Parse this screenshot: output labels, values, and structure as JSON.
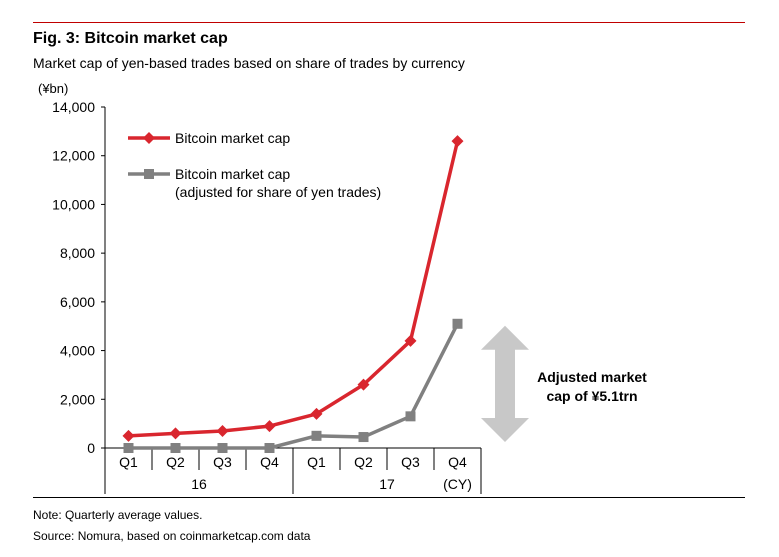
{
  "figure": {
    "title": "Fig. 3: Bitcoin market cap",
    "subtitle": "Market cap of yen-based trades based on share of trades by currency",
    "note": "Note: Quarterly average values.",
    "source": "Source: Nomura, based on coinmarketcap.com data"
  },
  "chart_data": {
    "type": "line",
    "ylabel": "(¥bn)",
    "ylim": [
      0,
      14000
    ],
    "yticks": [
      "0",
      "2,000",
      "4,000",
      "6,000",
      "8,000",
      "10,000",
      "12,000",
      "14,000"
    ],
    "categories": [
      "Q1",
      "Q2",
      "Q3",
      "Q4",
      "Q1",
      "Q2",
      "Q3",
      "Q4"
    ],
    "year_groups": [
      {
        "label": "16",
        "span": [
          0,
          3
        ]
      },
      {
        "label": "17",
        "span": [
          4,
          7
        ]
      }
    ],
    "x_unit_label": "(CY)",
    "grid": false,
    "legend_position": "top-left",
    "series": [
      {
        "name": "Bitcoin market cap",
        "color": "#d9262e",
        "marker": "diamond",
        "values": [
          500,
          600,
          700,
          900,
          1400,
          2600,
          4400,
          12600
        ]
      },
      {
        "name": "Bitcoin market cap (adjusted for share of yen trades)",
        "legend_lines": [
          "Bitcoin market cap",
          "(adjusted for share of yen trades)"
        ],
        "color": "#808080",
        "marker": "square",
        "values": [
          0,
          0,
          0,
          0,
          500,
          450,
          1300,
          5100
        ]
      }
    ],
    "annotation": {
      "lines": [
        "Adjusted market",
        "cap of ¥5.1trn"
      ],
      "arrow_color": "#c8c8c8",
      "arrow_range": [
        0,
        5100
      ]
    }
  }
}
